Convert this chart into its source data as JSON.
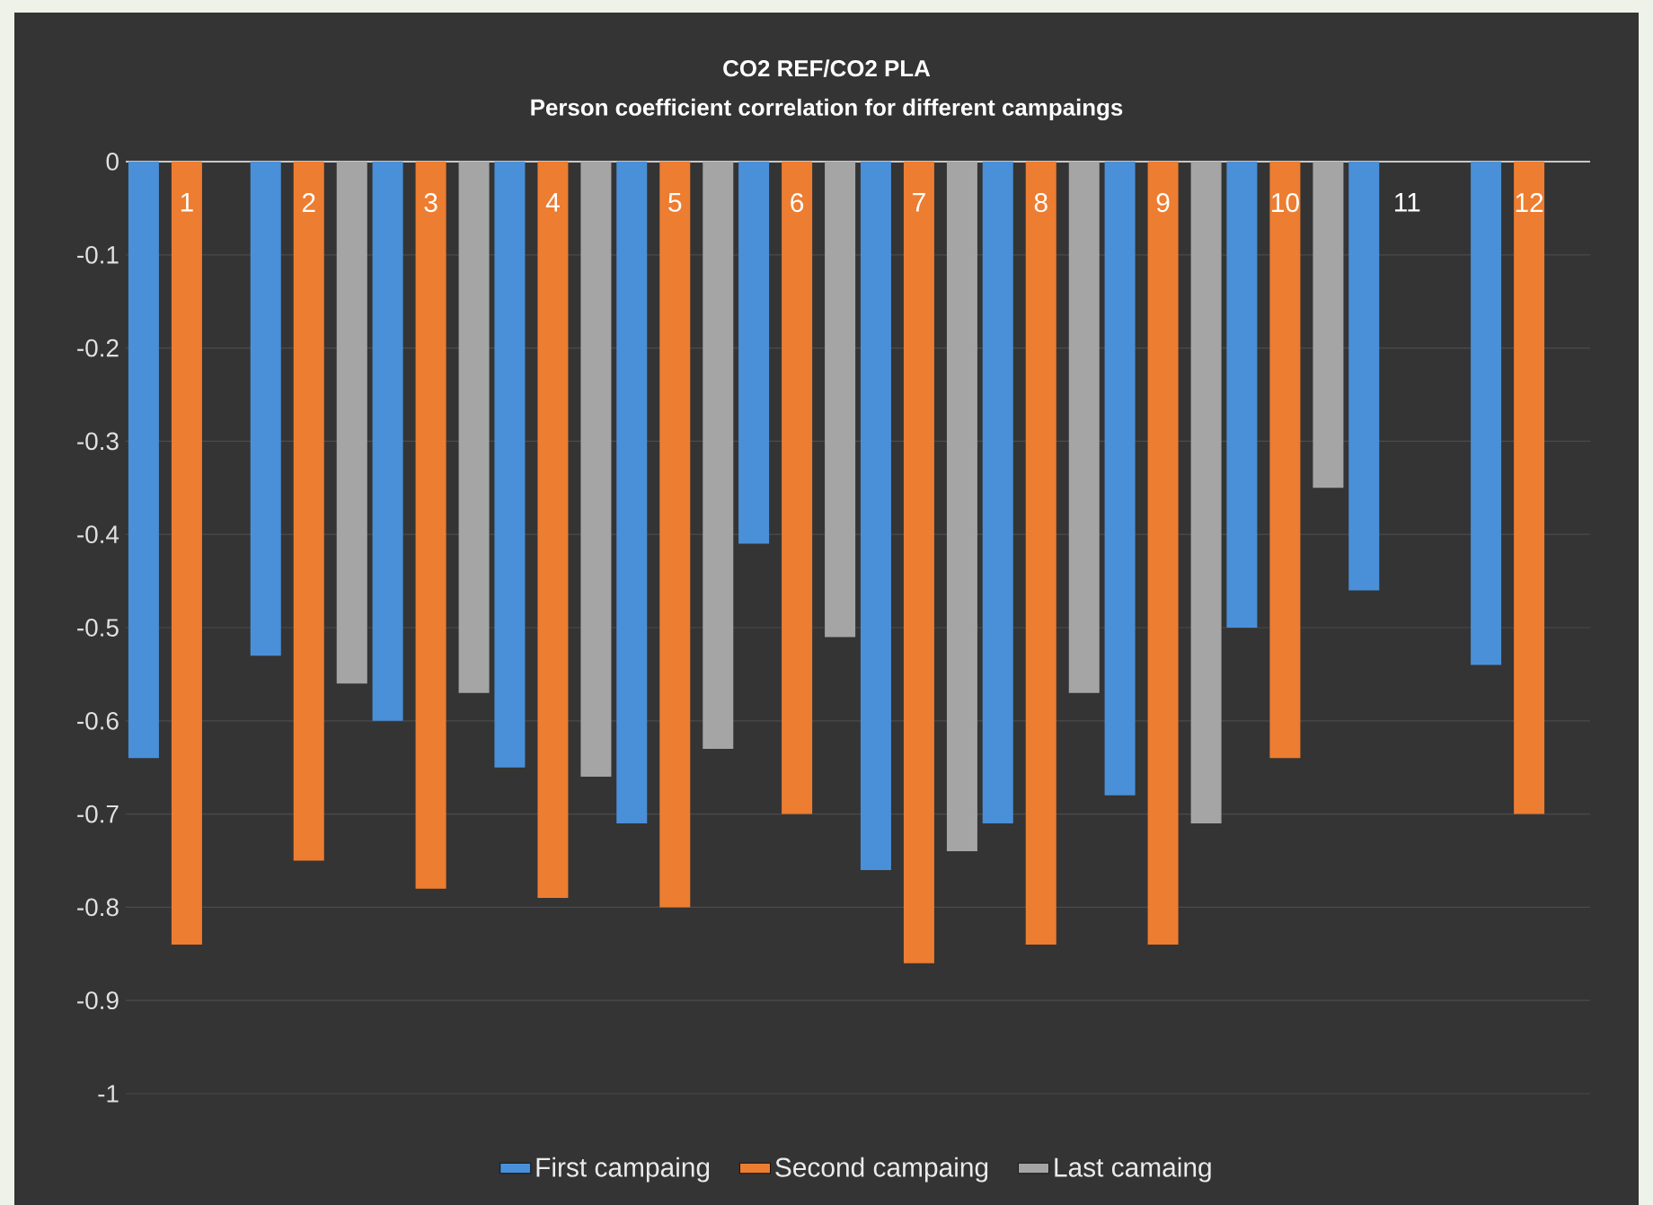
{
  "chart_data": {
    "type": "bar",
    "title": "CO2 REF/CO2 PLA",
    "subtitle": "Person coefficient correlation for different  campaings",
    "categories": [
      "1",
      "2",
      "3",
      "4",
      "5",
      "6",
      "7",
      "8",
      "9",
      "10",
      "11",
      "12"
    ],
    "series": [
      {
        "name": "First campaing",
        "color": "#4a90d9",
        "values": [
          -0.64,
          -0.53,
          -0.6,
          -0.65,
          -0.71,
          -0.41,
          -0.76,
          -0.71,
          -0.68,
          -0.5,
          -0.46,
          -0.54
        ]
      },
      {
        "name": "Second campaing",
        "color": "#ed7d31",
        "values": [
          -0.84,
          -0.75,
          -0.78,
          -0.79,
          -0.8,
          -0.7,
          -0.86,
          -0.84,
          -0.84,
          -0.64,
          null,
          -0.7
        ]
      },
      {
        "name": "Last camaing",
        "color": "#a5a5a5",
        "values": [
          null,
          -0.56,
          -0.57,
          -0.66,
          -0.63,
          -0.51,
          -0.74,
          -0.57,
          -0.71,
          -0.35,
          null,
          null
        ]
      }
    ],
    "ylim": [
      -1,
      0
    ],
    "yticks": [
      0,
      -0.1,
      -0.2,
      -0.3,
      -0.4,
      -0.5,
      -0.6,
      -0.7,
      -0.8,
      -0.9,
      -1
    ],
    "grid": "y",
    "legend": "bottom"
  }
}
